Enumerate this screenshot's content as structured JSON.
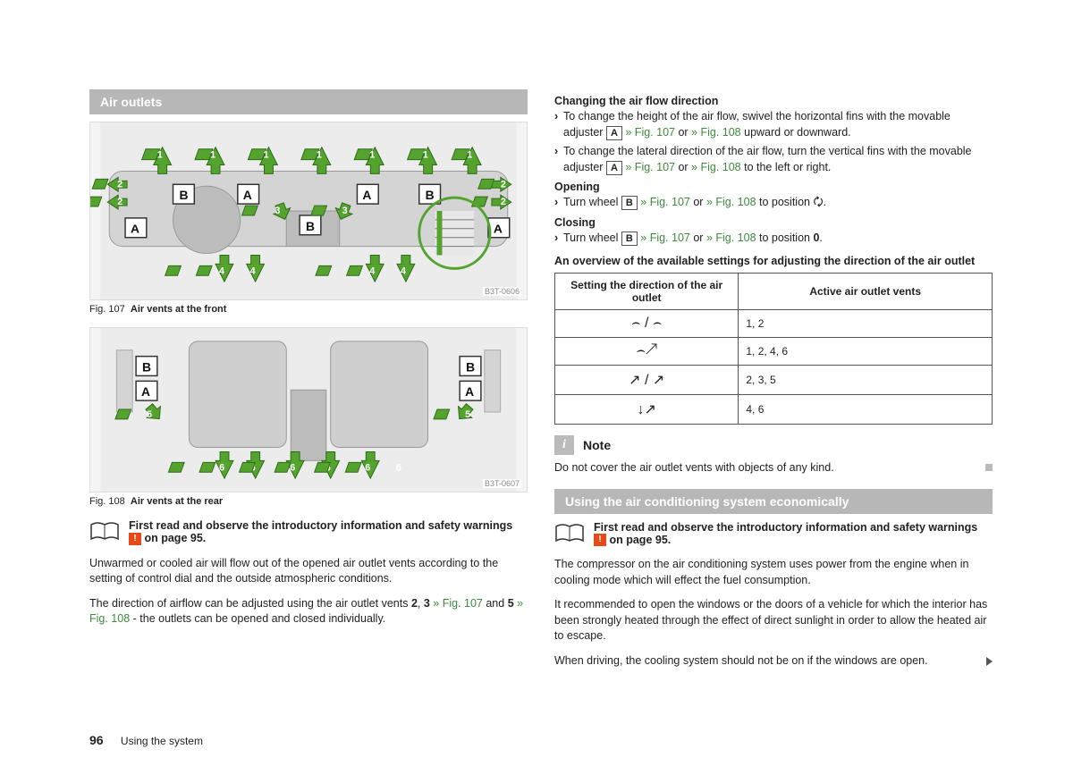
{
  "page_number": "96",
  "footer_title": "Using the system",
  "left": {
    "section_title": "Air outlets",
    "fig107": {
      "caption_prefix": "Fig. 107",
      "caption_text": "Air vents at the front",
      "code": "B3T-0606",
      "labels": [
        "A",
        "B",
        "A",
        "B",
        "A",
        "B",
        "A"
      ],
      "numbers": [
        "1",
        "1",
        "1",
        "1",
        "1",
        "1",
        "1",
        "2",
        "2",
        "2",
        "2",
        "3",
        "3",
        "3",
        "3",
        "4",
        "4",
        "4",
        "4"
      ]
    },
    "fig108": {
      "caption_prefix": "Fig. 108",
      "caption_text": "Air vents at the rear",
      "code": "B3T-0607",
      "labels": [
        "A",
        "B",
        "A",
        "B"
      ],
      "numbers": [
        "5",
        "5",
        "6",
        "6",
        "6",
        "6",
        "6",
        "6"
      ]
    },
    "intro_pre": "First read and observe the introductory information and safety warnings ",
    "intro_post": " on page 95.",
    "para1": "Unwarmed or cooled air will flow out of the opened air outlet vents according to the setting of control dial and the outside atmospheric conditions.",
    "para2_a": "The direction of airflow can be adjusted using the air outlet vents ",
    "para2_b": "2",
    "para2_c": ", ",
    "para2_d": "3",
    "para2_e": " » Fig. 107",
    "para2_f": " and ",
    "para2_g": "5",
    "para2_h": " » Fig. 108",
    "para2_i": " - the outlets can be opened and closed individually."
  },
  "right": {
    "h1": "Changing the air flow direction",
    "b1_a": "To change the height of the air flow, swivel the horizontal fins with the movable adjuster ",
    "b1_key": "A",
    "b1_b": " » Fig. 107",
    "b1_c": " or ",
    "b1_d": "» Fig. 108",
    "b1_e": " upward or downward.",
    "b2_a": "To change the lateral direction of the air flow, turn the vertical fins with the movable adjuster ",
    "b2_key": "A",
    "b2_b": " » Fig. 107",
    "b2_c": " or ",
    "b2_d": "» Fig. 108",
    "b2_e": " to the left or right.",
    "h2": "Opening",
    "b3_a": "Turn wheel ",
    "b3_key": "B",
    "b3_b": " » Fig. 107",
    "b3_c": " or ",
    "b3_d": "» Fig. 108",
    "b3_e": " to position 🗘.",
    "h3": "Closing",
    "b4_a": "Turn wheel ",
    "b4_key": "B",
    "b4_b": " » Fig. 107",
    "b4_c": " or ",
    "b4_d": "» Fig. 108",
    "b4_e": " to position ",
    "b4_bold": "0",
    "b4_f": ".",
    "table_title": "An overview of the available settings for adjusting the direction of the air outlet",
    "table": {
      "colA": "Setting the direction of the air outlet",
      "colB": "Active air outlet vents",
      "rows": [
        {
          "icon": "⌢ / ⌢",
          "val": "1, 2"
        },
        {
          "icon": "⌢↗",
          "val": "1, 2, 4, 6"
        },
        {
          "icon": "↗ / ↗",
          "val": "2, 3, 5"
        },
        {
          "icon": "↓↗",
          "val": "4, 6"
        }
      ]
    },
    "note_label": "Note",
    "note_text": "Do not cover the air outlet vents with objects of any kind.",
    "section2_title": "Using the air conditioning system economically",
    "intro2_pre": "First read and observe the introductory information and safety warnings ",
    "intro2_post": " on page 95.",
    "eco1": "The compressor on the air conditioning system uses power from the engine when in cooling mode which will effect the fuel consumption.",
    "eco2": "It recommended to open the windows or the doors of a vehicle for which the interior has been strongly heated through the effect of direct sunlight in order to allow the heated air to escape.",
    "eco3": "When driving, the cooling system should not be on if the windows are open."
  }
}
